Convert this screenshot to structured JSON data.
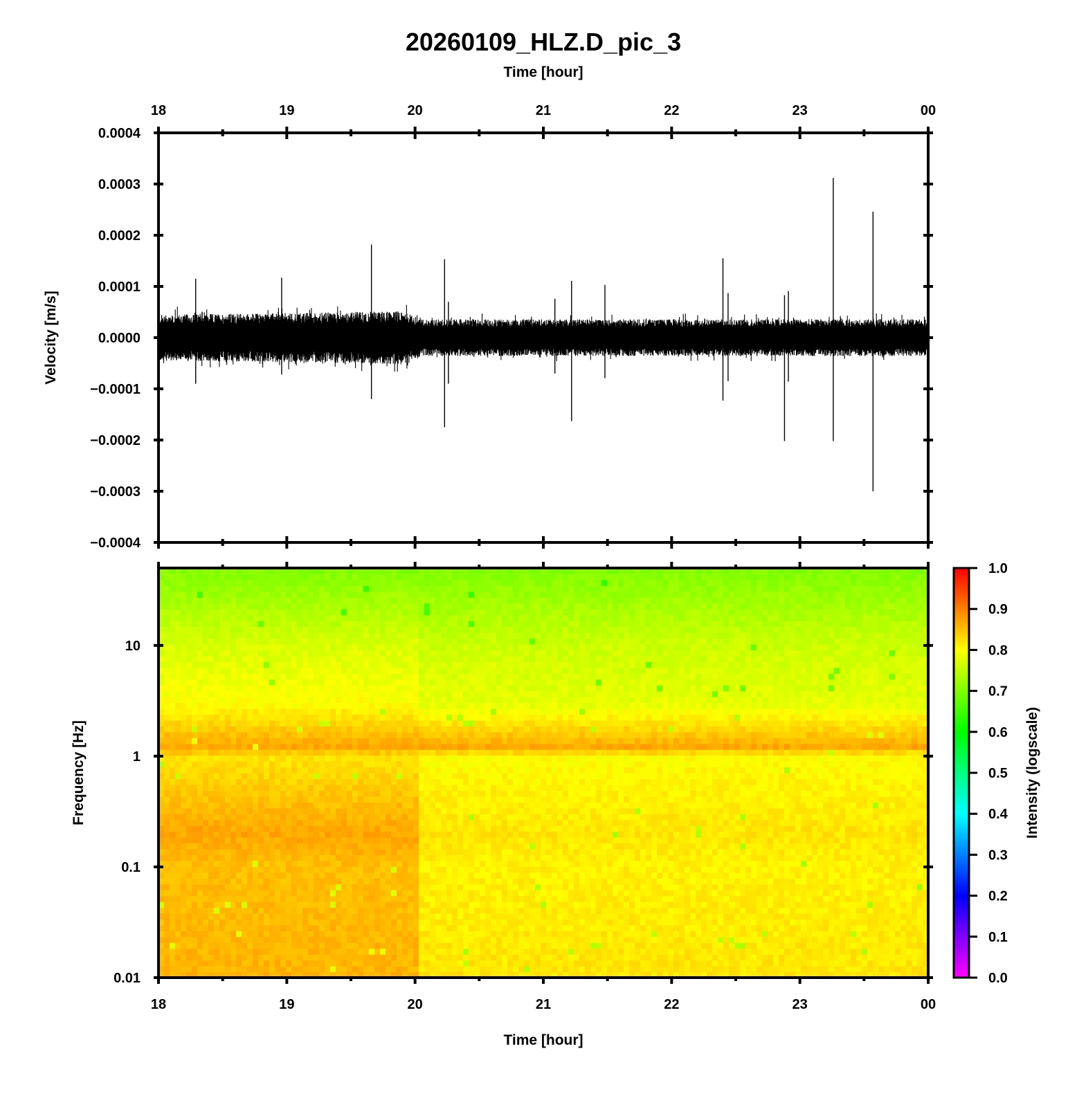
{
  "chart_data": [
    {
      "type": "line",
      "title": "20260109_HLZ.D_pic_3",
      "xlabel": "Time [hour]",
      "ylabel": "Velocity [m/s]",
      "x_ticks": [
        "18",
        "19",
        "20",
        "21",
        "22",
        "23",
        "00"
      ],
      "xlim": [
        18,
        24
      ],
      "ylim": [
        -0.0004,
        0.0004
      ],
      "y_ticks": [
        "0.0004",
        "0.0003",
        "0.0002",
        "0.0001",
        "0.0000",
        "−0.0001",
        "−0.0002",
        "−0.0003",
        "−0.0004"
      ],
      "grid": false,
      "series": [
        {
          "color": "#000000",
          "noise_envelope": [
            {
              "x": 18.0,
              "amp": 4.5e-05
            },
            {
              "x": 19.0,
              "amp": 4.8e-05
            },
            {
              "x": 19.9,
              "amp": 5.2e-05
            },
            {
              "x": 20.05,
              "amp": 3.6e-05
            },
            {
              "x": 24.0,
              "amp": 3.6e-05
            }
          ],
          "spikes": [
            {
              "x": 18.29,
              "max": 0.000115,
              "min": -9e-05
            },
            {
              "x": 18.96,
              "max": 0.000117,
              "min": -7.2e-05
            },
            {
              "x": 19.66,
              "max": 0.000182,
              "min": -0.00012
            },
            {
              "x": 20.23,
              "max": 0.000153,
              "min": -0.000175
            },
            {
              "x": 20.26,
              "max": 7e-05,
              "min": -9e-05
            },
            {
              "x": 21.09,
              "max": 7.6e-05,
              "min": -7e-05
            },
            {
              "x": 21.22,
              "max": 0.000111,
              "min": -0.000163
            },
            {
              "x": 21.48,
              "max": 0.000103,
              "min": -7.9e-05
            },
            {
              "x": 22.4,
              "max": 0.000155,
              "min": -0.000123
            },
            {
              "x": 22.44,
              "max": 8.7e-05,
              "min": -8.5e-05
            },
            {
              "x": 22.88,
              "max": 8.3e-05,
              "min": -0.000202
            },
            {
              "x": 22.91,
              "max": 9.1e-05,
              "min": -8.6e-05
            },
            {
              "x": 23.26,
              "max": 0.000312,
              "min": -0.000202
            },
            {
              "x": 23.57,
              "max": 0.000246,
              "min": -0.0003
            }
          ]
        }
      ]
    },
    {
      "type": "heatmap",
      "xlabel": "Time [hour]",
      "ylabel": "Frequency [Hz]",
      "x_ticks": [
        "18",
        "19",
        "20",
        "21",
        "22",
        "23",
        "00"
      ],
      "xlim": [
        18,
        24
      ],
      "y_scale": "log",
      "ylim": [
        0.01,
        50
      ],
      "y_ticks": [
        "10",
        "1",
        "0.1",
        "0.01"
      ],
      "colorbar": {
        "label": "Intensity (logscale)",
        "range": [
          0.0,
          1.0
        ],
        "ticks": [
          "1.0",
          "0.9",
          "0.8",
          "0.7",
          "0.6",
          "0.5",
          "0.4",
          "0.3",
          "0.2",
          "0.1",
          "0.0"
        ],
        "colors": [
          "#ff00ff",
          "#8000ff",
          "#0000ff",
          "#0080ff",
          "#00ffff",
          "#00ff80",
          "#00ff00",
          "#80ff00",
          "#ffff00",
          "#ff8000",
          "#ff0000"
        ]
      },
      "intensity_profile": [
        {
          "freq": 0.01,
          "before_20h": 0.86,
          "after_20h": 0.82
        },
        {
          "freq": 0.1,
          "before_20h": 0.85,
          "after_20h": 0.81
        },
        {
          "freq": 0.2,
          "before_20h": 0.87,
          "after_20h": 0.82
        },
        {
          "freq": 1.0,
          "before_20h": 0.82,
          "after_20h": 0.8
        },
        {
          "freq": 1.2,
          "before_20h": 0.87,
          "after_20h": 0.87
        },
        {
          "freq": 3.0,
          "before_20h": 0.8,
          "after_20h": 0.78
        },
        {
          "freq": 10,
          "before_20h": 0.77,
          "after_20h": 0.76
        },
        {
          "freq": 50,
          "before_20h": 0.7,
          "after_20h": 0.7
        }
      ]
    }
  ]
}
